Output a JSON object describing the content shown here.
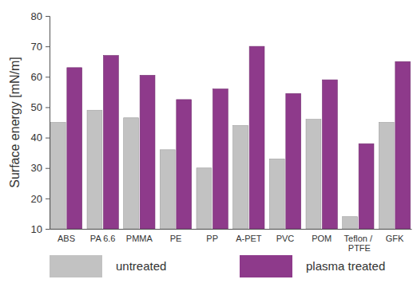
{
  "chart_data": {
    "type": "bar",
    "y_label": "Surface energy [mN/m]",
    "categories": [
      "ABS",
      "PA 6.6",
      "PMMA",
      "PE",
      "PP",
      "A-PET",
      "PVC",
      "POM",
      "Teflon / PTFE",
      "GFK"
    ],
    "series": [
      {
        "name": "untreated",
        "color": "#c2c2c2",
        "values": [
          45,
          49,
          46.5,
          36,
          30,
          44,
          33,
          46,
          14,
          45
        ]
      },
      {
        "name": "plasma treated",
        "color": "#8e3a8b",
        "values": [
          63,
          67,
          60.5,
          52.5,
          56,
          70,
          54.5,
          59,
          38,
          65
        ]
      }
    ],
    "ylim": [
      10,
      80
    ],
    "yticks": [
      10,
      20,
      30,
      40,
      50,
      60,
      70,
      80
    ],
    "grid": false,
    "legend": "bottom"
  }
}
